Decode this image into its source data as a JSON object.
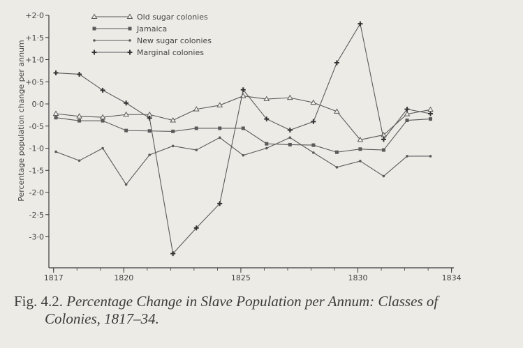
{
  "chart_data": {
    "type": "line",
    "ylabel": "Percentage population change per annum",
    "xlabel": "",
    "ylim": [
      -3.7,
      2.0
    ],
    "xlim": [
      1816.8,
      1834.1
    ],
    "y_ticks": [
      2.0,
      1.5,
      1.0,
      0.5,
      0.0,
      -0.5,
      -1.0,
      -1.5,
      -2.0,
      -2.5,
      -3.0
    ],
    "y_tick_labels": [
      "+2·0",
      "+1·5",
      "+1·0",
      "+0·5",
      "0·0",
      "-0·5",
      "-1·0",
      "-1·5",
      "-2·0",
      "-2·5",
      "-3·0"
    ],
    "x_ticks": [
      1817,
      1820,
      1825,
      1830,
      1834
    ],
    "x_tick_labels": [
      "1817",
      "1820",
      "1825",
      "1830",
      "1834"
    ],
    "legend_position": "top-left",
    "grid": false,
    "series": [
      {
        "name": "Old sugar colonies",
        "marker": "triangle",
        "x": [
          1817.1,
          1818.1,
          1819.1,
          1820.1,
          1821.1,
          1822.1,
          1823.1,
          1824.1,
          1825.1,
          1826.1,
          1827.1,
          1828.1,
          1829.1,
          1830.1,
          1831.1,
          1832.1,
          1833.1
        ],
        "values": [
          -0.22,
          -0.28,
          -0.3,
          -0.24,
          -0.24,
          -0.37,
          -0.12,
          -0.03,
          0.18,
          0.11,
          0.14,
          0.03,
          -0.17,
          -0.81,
          -0.7,
          -0.23,
          -0.13
        ]
      },
      {
        "name": "Jamaica",
        "marker": "square",
        "x": [
          1817.1,
          1818.1,
          1819.1,
          1820.1,
          1821.1,
          1822.1,
          1823.1,
          1824.1,
          1825.1,
          1826.1,
          1827.1,
          1828.1,
          1829.1,
          1830.1,
          1831.1,
          1832.1,
          1833.1
        ],
        "values": [
          -0.31,
          -0.38,
          -0.38,
          -0.6,
          -0.61,
          -0.62,
          -0.55,
          -0.55,
          -0.55,
          -0.9,
          -0.92,
          -0.93,
          -1.09,
          -1.02,
          -1.04,
          -0.37,
          -0.34
        ]
      },
      {
        "name": "New sugar colonies",
        "marker": "dot",
        "x": [
          1817.1,
          1818.1,
          1819.1,
          1820.1,
          1821.1,
          1822.1,
          1823.1,
          1824.1,
          1825.1,
          1826.1,
          1827.1,
          1828.1,
          1829.1,
          1830.1,
          1831.1,
          1832.1,
          1833.1
        ],
        "values": [
          -1.08,
          -1.28,
          -1.0,
          -1.82,
          -1.15,
          -0.95,
          -1.04,
          -0.76,
          -1.16,
          -1.0,
          -0.76,
          -1.1,
          -1.43,
          -1.29,
          -1.63,
          -1.18,
          -1.18
        ]
      },
      {
        "name": "Marginal colonies",
        "marker": "plus",
        "x": [
          1817.1,
          1818.1,
          1819.1,
          1820.1,
          1821.1,
          1822.1,
          1823.1,
          1824.1,
          1825.1,
          1826.1,
          1827.1,
          1828.1,
          1829.1,
          1830.1,
          1831.1,
          1832.1,
          1833.1
        ],
        "values": [
          0.7,
          0.67,
          0.31,
          0.02,
          -0.32,
          -3.38,
          -2.8,
          -2.25,
          0.32,
          -0.34,
          -0.59,
          -0.4,
          0.93,
          1.81,
          -0.8,
          -0.12,
          -0.22
        ]
      }
    ]
  },
  "caption": {
    "fig": "Fig. 4.2.",
    "title_line1": "Percentage Change in Slave Population per Annum: Classes of",
    "title_line2": "Colonies, 1817–34."
  },
  "colors": {
    "line": "#5a5a5a",
    "axis": "#3a3a3a",
    "text": "#444444"
  }
}
